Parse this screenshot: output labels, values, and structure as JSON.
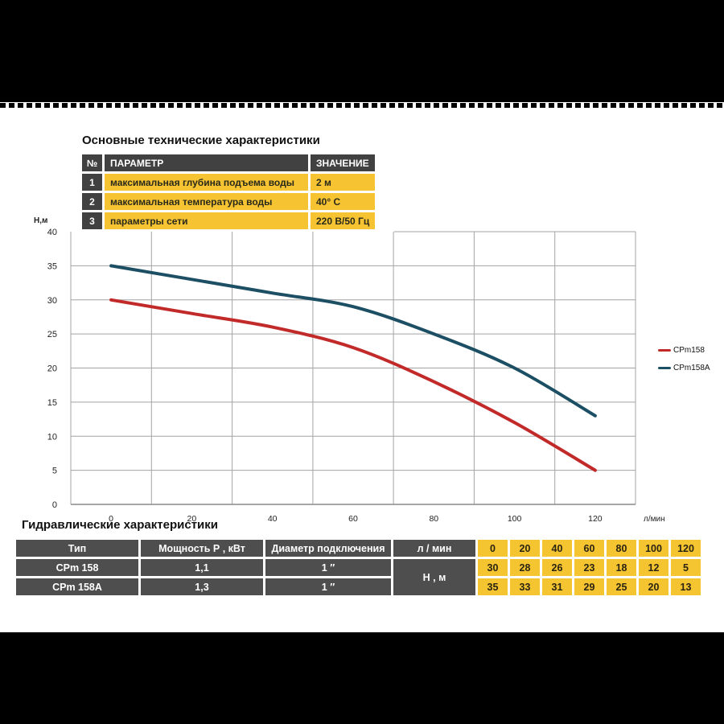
{
  "titles": {
    "specs": "Основные технические характеристики",
    "hydraulics": "Гидравлические характеристики"
  },
  "spec_table": {
    "headers": {
      "num": "№",
      "param": "ПАРАМЕТР",
      "value": "ЗНАЧЕНИЕ"
    },
    "rows": [
      {
        "num": "1",
        "param": "максимальная глубина подъема воды",
        "value": "2 м"
      },
      {
        "num": "2",
        "param": "максимальная температура воды",
        "value": "40° C"
      },
      {
        "num": "3",
        "param": "параметры сети",
        "value": "220 В/50 Гц"
      }
    ]
  },
  "chart_data": {
    "type": "line",
    "title": "",
    "xlabel": "л/мин",
    "ylabel": "Н,м",
    "x": [
      0,
      20,
      40,
      60,
      80,
      100,
      120
    ],
    "xtick_labels": [
      "0",
      "20",
      "40",
      "60",
      "80",
      "100",
      "120"
    ],
    "series": [
      {
        "name": "CPm158",
        "color": "#c22a2a",
        "values": [
          30,
          28,
          26,
          23,
          18,
          12,
          5
        ]
      },
      {
        "name": "CPm158A",
        "color": "#1c4f63",
        "values": [
          35,
          33,
          31,
          29,
          25,
          20,
          13
        ]
      }
    ],
    "ylim": [
      0,
      40
    ],
    "ytick_step": 5,
    "grid": true,
    "legend_position": "right"
  },
  "hydraulic_table": {
    "col_headers": {
      "type": "Тип",
      "power": "Мощность Р , кВт",
      "diameter": "Диаметр подключения",
      "flow": "л / мин"
    },
    "flow_values": [
      "0",
      "20",
      "40",
      "60",
      "80",
      "100",
      "120"
    ],
    "head_row_label": "Н , м",
    "rows": [
      {
        "type": "CPm 158",
        "power": "1,1",
        "diameter": "1 ″",
        "head": [
          "30",
          "28",
          "26",
          "23",
          "18",
          "12",
          "5"
        ]
      },
      {
        "type": "CPm 158A",
        "power": "1,3",
        "diameter": "1 ″",
        "head": [
          "35",
          "33",
          "31",
          "29",
          "25",
          "20",
          "13"
        ]
      }
    ]
  }
}
